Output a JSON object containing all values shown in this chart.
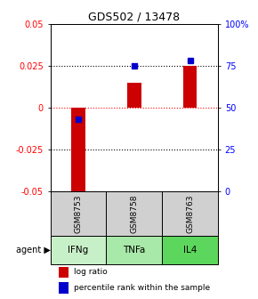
{
  "title": "GDS502 / 13478",
  "categories": [
    "GSM8753",
    "GSM8758",
    "GSM8763"
  ],
  "agents": [
    "IFNg",
    "TNFa",
    "IL4"
  ],
  "log_ratios": [
    -0.052,
    0.015,
    0.025
  ],
  "percentile_ranks": [
    43,
    75,
    78
  ],
  "ylim_left": [
    -0.05,
    0.05
  ],
  "ylim_right": [
    0,
    100
  ],
  "yticks_left": [
    -0.05,
    -0.025,
    0,
    0.025,
    0.05
  ],
  "yticks_right": [
    0,
    25,
    50,
    75,
    100
  ],
  "ytick_labels_left": [
    "-0.05",
    "-0.025",
    "0",
    "0.025",
    "0.05"
  ],
  "ytick_labels_right": [
    "0",
    "25",
    "50",
    "75",
    "100%"
  ],
  "hlines_dotted": [
    0.025,
    -0.025
  ],
  "hline_zero_color": "red",
  "bar_color": "#cc0000",
  "marker_color": "#0000cc",
  "agent_colors": [
    "#c8f0c8",
    "#a8e8a8",
    "#5cd65c"
  ],
  "sample_bg": "#d0d0d0",
  "legend_items": [
    "log ratio",
    "percentile rank within the sample"
  ],
  "legend_colors": [
    "#cc0000",
    "#0000cc"
  ],
  "bar_width": 0.25
}
